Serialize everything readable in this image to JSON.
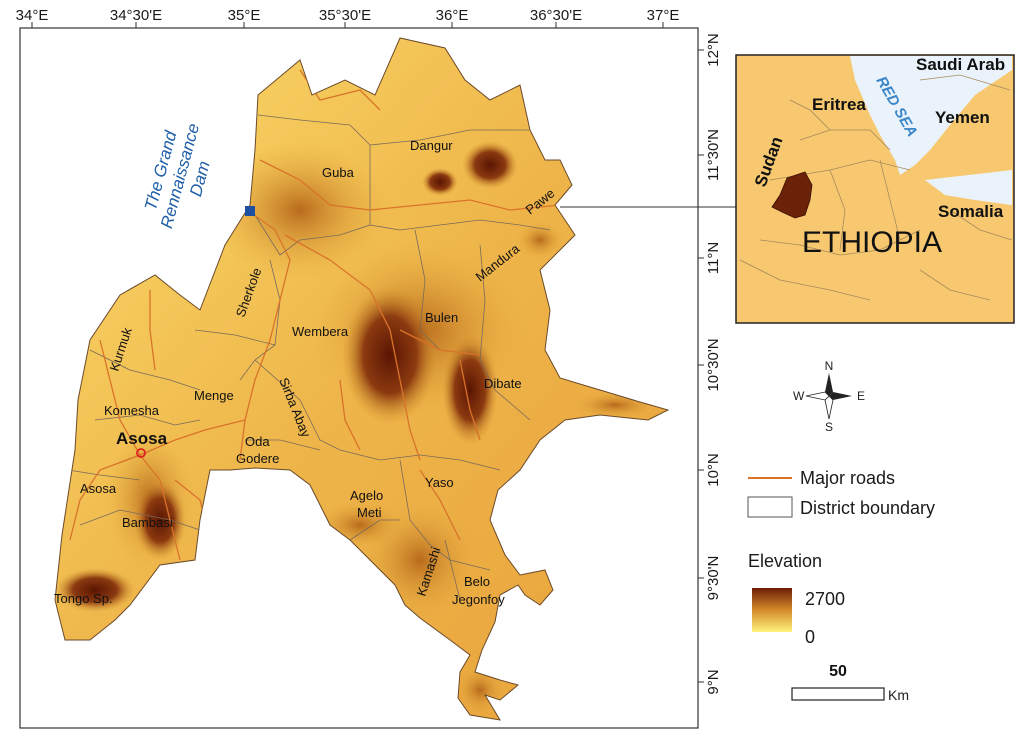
{
  "map": {
    "lon_ticks": [
      "34°E",
      "34°30'E",
      "35°E",
      "35°30'E",
      "36°E",
      "36°30'E",
      "37°E"
    ],
    "lat_ticks": [
      "12°N",
      "11°30'N",
      "11°N",
      "10°30'N",
      "10°N",
      "9°30'N",
      "9°N"
    ],
    "dam_label": [
      "The Grand",
      "Rennaissance",
      "Dam"
    ],
    "capital": "Asosa",
    "districts": [
      {
        "name": "Dangur"
      },
      {
        "name": "Guba"
      },
      {
        "name": "Pawe"
      },
      {
        "name": "Mandura"
      },
      {
        "name": "Sherkole"
      },
      {
        "name": "Wembera"
      },
      {
        "name": "Bulen"
      },
      {
        "name": "Kurmuk"
      },
      {
        "name": "Menge"
      },
      {
        "name": "Komesha"
      },
      {
        "name": "Dibate"
      },
      {
        "name": "Sirba Abay"
      },
      {
        "name": "Oda"
      },
      {
        "name": "Godere"
      },
      {
        "name": "Asosa"
      },
      {
        "name": "Yaso"
      },
      {
        "name": "Agelo"
      },
      {
        "name": "Meti"
      },
      {
        "name": "Bambasi"
      },
      {
        "name": "Kamashi"
      },
      {
        "name": "Belo"
      },
      {
        "name": "Jegonfoy"
      },
      {
        "name": "Tongo Sp."
      }
    ]
  },
  "inset": {
    "country": "ETHIOPIA",
    "neighbors": [
      "Saudi Arab",
      "Eritrea",
      "Yemen",
      "Sudan",
      "Somalia"
    ],
    "sea": "RED SEA"
  },
  "compass": {
    "n": "N",
    "s": "S",
    "e": "E",
    "w": "W"
  },
  "legend": {
    "roads": "Major roads",
    "boundary": "District boundary",
    "elevation_title": "Elevation",
    "elev_max": "2700",
    "elev_min": "0",
    "scale_value": "50",
    "scale_unit": "Km",
    "road_color": "#d9732a",
    "ramp_high": "#6b1d05",
    "ramp_low": "#fff27a"
  }
}
